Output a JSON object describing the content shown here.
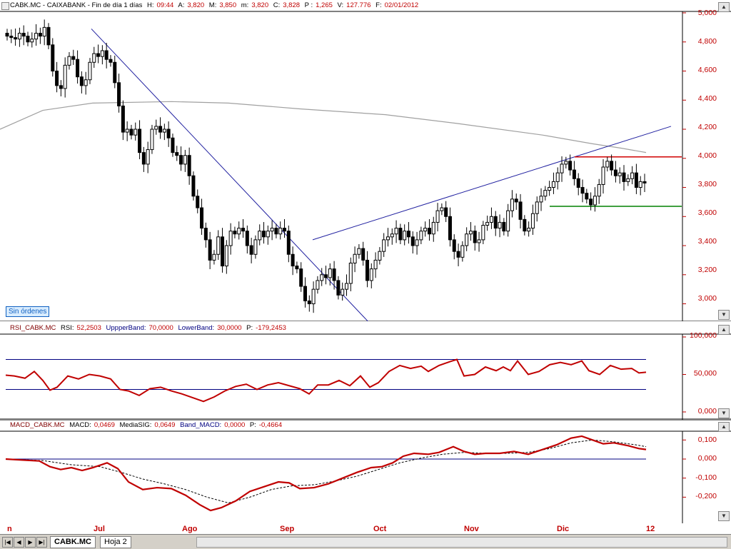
{
  "price_panel": {
    "header": {
      "symbol": "CABK.MC - CAIXABANK - Fin de día 1 días",
      "h_label": "H:",
      "h_value": "09:44",
      "a_label": "A:",
      "a_value": "3,820",
      "m_label": "M:",
      "m_value": "3,850",
      "mm_label": "m:",
      "mm_value": "3,820",
      "c_label": "C:",
      "c_value": "3,828",
      "p_label": "P :",
      "p_value": "1,265",
      "v_label": "V:",
      "v_value": "127.776",
      "f_label": "F:",
      "f_value": "02/01/2012"
    },
    "badge": "Sin órdenes",
    "y_ticks": [
      "5,000",
      "4,800",
      "4,600",
      "4,400",
      "4,200",
      "4,000",
      "3,800",
      "3,600",
      "3,400",
      "3,200",
      "3,000"
    ]
  },
  "rsi_panel": {
    "header": {
      "name": "RSI_CABK.MC",
      "rsi_label": "RSI:",
      "rsi_value": "52,2503",
      "upper_label": "UppperBand:",
      "upper_value": "70,0000",
      "lower_label": "LowerBand:",
      "lower_value": "30,0000",
      "p_label": "P:",
      "p_value": "-179,2453"
    },
    "y_ticks": [
      "100,000",
      "50,000",
      "0,000"
    ]
  },
  "macd_panel": {
    "header": {
      "name": "MACD_CABK.MC",
      "macd_label": "MACD:",
      "macd_value": "0,0469",
      "sig_label": "MediaSIG:",
      "sig_value": "0,0649",
      "band_label": "Band_MACD:",
      "band_value": "0,0000",
      "p_label": "P:",
      "p_value": "-0,4664"
    },
    "y_ticks": [
      "0,100",
      "0,000",
      "-0,100",
      "-0,200"
    ]
  },
  "x_axis": [
    "n",
    "Jul",
    "Ago",
    "Sep",
    "Oct",
    "Nov",
    "Dic",
    "12"
  ],
  "bottom_bar": {
    "tabs": [
      {
        "label": "CABK.MC"
      },
      {
        "label": "Hoja 2"
      }
    ]
  },
  "colors": {
    "candle": "#000000",
    "downtrend": "#2020a0",
    "sma": "#a0a0a0",
    "resistance": "#d00000",
    "support": "#008000",
    "rsi": "#c00000",
    "macd": "#c00000",
    "band": "#000080"
  },
  "chart_data": [
    {
      "type": "candlestick",
      "ylim": [
        2.88,
        5.0
      ],
      "candles_close": [
        4.84,
        4.83,
        4.82,
        4.86,
        4.84,
        4.8,
        4.82,
        4.86,
        4.84,
        4.9,
        4.78,
        4.6,
        4.5,
        4.48,
        4.64,
        4.7,
        4.68,
        4.56,
        4.5,
        4.54,
        4.66,
        4.72,
        4.7,
        4.74,
        4.68,
        4.66,
        4.52,
        4.36,
        4.18,
        4.2,
        4.16,
        4.2,
        4.04,
        3.96,
        4.06,
        4.2,
        4.22,
        4.18,
        4.2,
        4.14,
        4.04,
        4.02,
        3.96,
        4.02,
        3.88,
        3.74,
        3.66,
        3.52,
        3.44,
        3.3,
        3.34,
        3.46,
        3.26,
        3.4,
        3.5,
        3.48,
        3.52,
        3.5,
        3.4,
        3.34,
        3.44,
        3.5,
        3.46,
        3.5,
        3.52,
        3.48,
        3.52,
        3.5,
        3.34,
        3.26,
        3.24,
        3.12,
        3.02,
        3.0,
        3.1,
        3.16,
        3.2,
        3.18,
        3.24,
        3.16,
        3.06,
        3.1,
        3.14,
        3.28,
        3.34,
        3.38,
        3.3,
        3.16,
        3.24,
        3.3,
        3.36,
        3.44,
        3.46,
        3.48,
        3.52,
        3.44,
        3.5,
        3.46,
        3.4,
        3.44,
        3.5,
        3.52,
        3.48,
        3.56,
        3.64,
        3.66,
        3.6,
        3.44,
        3.36,
        3.32,
        3.4,
        3.48,
        3.5,
        3.42,
        3.44,
        3.54,
        3.56,
        3.6,
        3.52,
        3.56,
        3.5,
        3.64,
        3.72,
        3.7,
        3.58,
        3.5,
        3.52,
        3.62,
        3.7,
        3.74,
        3.78,
        3.8,
        3.84,
        3.9,
        3.96,
        3.98,
        3.92,
        3.86,
        3.8,
        3.76,
        3.72,
        3.68,
        3.74,
        3.82,
        3.94,
        3.98,
        3.92,
        3.88,
        3.9,
        3.84,
        3.86,
        3.9,
        3.8,
        3.84,
        3.83
      ],
      "sma_line": [
        [
          0,
          4.2
        ],
        [
          60,
          4.33
        ],
        [
          130,
          4.38
        ],
        [
          240,
          4.39
        ],
        [
          320,
          4.38
        ],
        [
          420,
          4.34
        ],
        [
          540,
          4.3
        ],
        [
          640,
          4.24
        ],
        [
          760,
          4.16
        ],
        [
          830,
          4.1
        ],
        [
          870,
          4.07
        ],
        [
          905,
          4.04
        ]
      ],
      "downtrend_line": [
        [
          128,
          4.89
        ],
        [
          523,
          2.84
        ]
      ],
      "uptrend_line": [
        [
          438,
          3.44
        ],
        [
          940,
          4.22
        ]
      ],
      "resistance": {
        "value": 4.01,
        "x_start": 805,
        "x_end": 955
      },
      "support": {
        "value": 3.67,
        "x_start": 770,
        "x_end": 955
      }
    },
    {
      "type": "line",
      "name": "RSI",
      "ylim": [
        0,
        100
      ],
      "upper_band": 70,
      "lower_band": 30,
      "points": [
        [
          8,
          49
        ],
        [
          20,
          48
        ],
        [
          35,
          45
        ],
        [
          48,
          54
        ],
        [
          60,
          42
        ],
        [
          70,
          29
        ],
        [
          80,
          33
        ],
        [
          95,
          48
        ],
        [
          110,
          44
        ],
        [
          125,
          50
        ],
        [
          140,
          48
        ],
        [
          155,
          44
        ],
        [
          168,
          30
        ],
        [
          180,
          28
        ],
        [
          195,
          22
        ],
        [
          210,
          31
        ],
        [
          225,
          33
        ],
        [
          240,
          28
        ],
        [
          255,
          24
        ],
        [
          270,
          19
        ],
        [
          285,
          14
        ],
        [
          300,
          20
        ],
        [
          315,
          28
        ],
        [
          330,
          34
        ],
        [
          345,
          37
        ],
        [
          360,
          30
        ],
        [
          375,
          36
        ],
        [
          390,
          39
        ],
        [
          405,
          35
        ],
        [
          420,
          31
        ],
        [
          433,
          24
        ],
        [
          445,
          36
        ],
        [
          460,
          36
        ],
        [
          475,
          42
        ],
        [
          490,
          35
        ],
        [
          505,
          48
        ],
        [
          518,
          33
        ],
        [
          530,
          39
        ],
        [
          545,
          54
        ],
        [
          560,
          62
        ],
        [
          575,
          58
        ],
        [
          590,
          61
        ],
        [
          600,
          54
        ],
        [
          615,
          62
        ],
        [
          630,
          67
        ],
        [
          640,
          70
        ],
        [
          650,
          48
        ],
        [
          665,
          50
        ],
        [
          680,
          60
        ],
        [
          695,
          55
        ],
        [
          705,
          60
        ],
        [
          715,
          55
        ],
        [
          725,
          68
        ],
        [
          740,
          50
        ],
        [
          755,
          54
        ],
        [
          770,
          63
        ],
        [
          785,
          66
        ],
        [
          800,
          63
        ],
        [
          815,
          68
        ],
        [
          825,
          55
        ],
        [
          840,
          50
        ],
        [
          855,
          62
        ],
        [
          870,
          57
        ],
        [
          885,
          58
        ],
        [
          895,
          52
        ],
        [
          905,
          53
        ]
      ]
    },
    {
      "type": "line",
      "name": "MACD",
      "ylim": [
        -0.3,
        0.15
      ],
      "band": 0.0,
      "macd": [
        [
          8,
          0.0
        ],
        [
          30,
          -0.005
        ],
        [
          55,
          -0.01
        ],
        [
          70,
          -0.04
        ],
        [
          85,
          -0.055
        ],
        [
          100,
          -0.045
        ],
        [
          115,
          -0.06
        ],
        [
          130,
          -0.045
        ],
        [
          150,
          -0.02
        ],
        [
          165,
          -0.05
        ],
        [
          180,
          -0.12
        ],
        [
          200,
          -0.16
        ],
        [
          220,
          -0.15
        ],
        [
          240,
          -0.155
        ],
        [
          260,
          -0.19
        ],
        [
          280,
          -0.24
        ],
        [
          295,
          -0.27
        ],
        [
          310,
          -0.255
        ],
        [
          330,
          -0.22
        ],
        [
          350,
          -0.17
        ],
        [
          370,
          -0.145
        ],
        [
          390,
          -0.12
        ],
        [
          405,
          -0.125
        ],
        [
          420,
          -0.155
        ],
        [
          440,
          -0.15
        ],
        [
          460,
          -0.13
        ],
        [
          480,
          -0.1
        ],
        [
          500,
          -0.07
        ],
        [
          520,
          -0.045
        ],
        [
          535,
          -0.04
        ],
        [
          550,
          -0.02
        ],
        [
          565,
          0.015
        ],
        [
          580,
          0.03
        ],
        [
          600,
          0.025
        ],
        [
          615,
          0.035
        ],
        [
          635,
          0.065
        ],
        [
          650,
          0.04
        ],
        [
          665,
          0.025
        ],
        [
          680,
          0.03
        ],
        [
          700,
          0.03
        ],
        [
          720,
          0.04
        ],
        [
          740,
          0.025
        ],
        [
          760,
          0.05
        ],
        [
          780,
          0.075
        ],
        [
          800,
          0.11
        ],
        [
          815,
          0.12
        ],
        [
          830,
          0.1
        ],
        [
          845,
          0.08
        ],
        [
          860,
          0.085
        ],
        [
          880,
          0.07
        ],
        [
          895,
          0.055
        ],
        [
          905,
          0.05
        ]
      ],
      "signal": [
        [
          8,
          0.0
        ],
        [
          60,
          -0.008
        ],
        [
          100,
          -0.03
        ],
        [
          140,
          -0.04
        ],
        [
          170,
          -0.07
        ],
        [
          200,
          -0.105
        ],
        [
          230,
          -0.13
        ],
        [
          260,
          -0.16
        ],
        [
          290,
          -0.2
        ],
        [
          320,
          -0.23
        ],
        [
          350,
          -0.2
        ],
        [
          380,
          -0.16
        ],
        [
          410,
          -0.14
        ],
        [
          440,
          -0.135
        ],
        [
          470,
          -0.115
        ],
        [
          500,
          -0.09
        ],
        [
          530,
          -0.055
        ],
        [
          560,
          -0.02
        ],
        [
          590,
          0.005
        ],
        [
          620,
          0.025
        ],
        [
          650,
          0.035
        ],
        [
          680,
          0.03
        ],
        [
          710,
          0.03
        ],
        [
          740,
          0.035
        ],
        [
          770,
          0.055
        ],
        [
          800,
          0.085
        ],
        [
          830,
          0.1
        ],
        [
          860,
          0.09
        ],
        [
          890,
          0.075
        ],
        [
          905,
          0.065
        ]
      ]
    }
  ]
}
